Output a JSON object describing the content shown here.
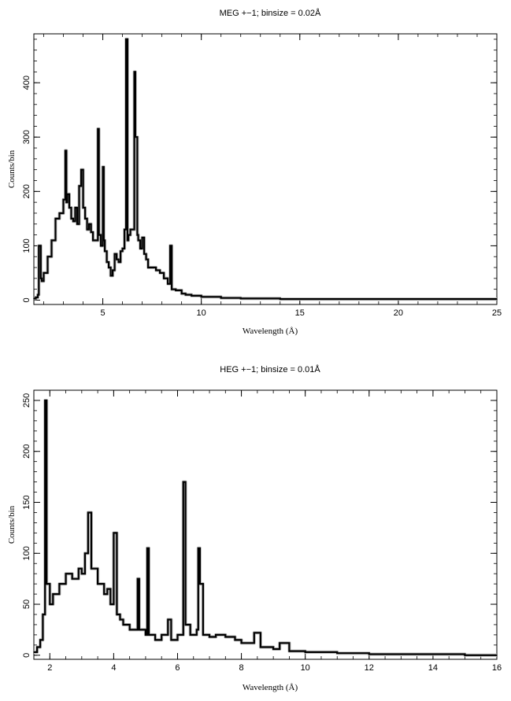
{
  "chart_data": [
    {
      "type": "line",
      "title": "MEG +−1; binsize = 0.02Å",
      "xlabel": "Wavelength (Å)",
      "ylabel": "Counts/bin",
      "xlim": [
        1.5,
        25
      ],
      "ylim": [
        -8,
        490
      ],
      "x_ticks": [
        5,
        10,
        15,
        20,
        25
      ],
      "y_ticks": [
        0,
        100,
        200,
        300,
        400
      ],
      "x_minor_step": 1,
      "y_minor_step": 20,
      "grid": false,
      "legend": "none",
      "series": [
        {
          "x": [
            1.5,
            1.6,
            1.7,
            1.75,
            1.85,
            1.9,
            2.0,
            2.2,
            2.4,
            2.6,
            2.7,
            2.8,
            3.0,
            3.1,
            3.15,
            3.2,
            3.3,
            3.4,
            3.5,
            3.6,
            3.7,
            3.8,
            3.9,
            4.0,
            4.1,
            4.2,
            4.3,
            4.4,
            4.5,
            4.6,
            4.75,
            4.8,
            4.9,
            5.0,
            5.05,
            5.1,
            5.2,
            5.3,
            5.4,
            5.5,
            5.6,
            5.7,
            5.8,
            5.9,
            6.0,
            6.1,
            6.18,
            6.25,
            6.3,
            6.4,
            6.5,
            6.6,
            6.65,
            6.7,
            6.75,
            6.8,
            6.9,
            7.0,
            7.1,
            7.2,
            7.3,
            7.5,
            7.7,
            7.9,
            8.1,
            8.3,
            8.42,
            8.5,
            8.7,
            9.0,
            9.2,
            9.5,
            10.0,
            11.0,
            12.0,
            13.0,
            14.0,
            15.0,
            16.0,
            18.0,
            20.0,
            22.0,
            25.0
          ],
          "y": [
            3,
            5,
            10,
            100,
            40,
            35,
            50,
            80,
            110,
            150,
            150,
            160,
            185,
            275,
            180,
            195,
            170,
            150,
            145,
            170,
            140,
            210,
            240,
            170,
            150,
            130,
            140,
            125,
            110,
            110,
            315,
            120,
            100,
            245,
            110,
            90,
            70,
            60,
            45,
            55,
            85,
            75,
            70,
            90,
            95,
            130,
            480,
            110,
            120,
            130,
            130,
            420,
            300,
            300,
            120,
            110,
            95,
            115,
            85,
            75,
            60,
            60,
            55,
            50,
            40,
            30,
            100,
            20,
            18,
            12,
            10,
            8,
            6,
            4,
            3,
            3,
            2,
            2,
            2,
            2,
            2,
            2,
            2
          ]
        }
      ]
    },
    {
      "type": "line",
      "title": "HEG +−1; binsize = 0.01Å",
      "xlabel": "Wavelength (Å)",
      "ylabel": "Counts/bin",
      "xlim": [
        1.5,
        16
      ],
      "ylim": [
        -4,
        260
      ],
      "x_ticks": [
        2,
        4,
        6,
        8,
        10,
        12,
        14,
        16
      ],
      "y_ticks": [
        0,
        50,
        100,
        150,
        200,
        250
      ],
      "x_minor_step": 0.5,
      "y_minor_step": 10,
      "grid": false,
      "legend": "none",
      "series": [
        {
          "x": [
            1.5,
            1.6,
            1.7,
            1.78,
            1.85,
            1.9,
            2.0,
            2.1,
            2.3,
            2.5,
            2.7,
            2.9,
            3.0,
            3.1,
            3.2,
            3.3,
            3.5,
            3.7,
            3.8,
            3.9,
            4.0,
            4.1,
            4.2,
            4.3,
            4.5,
            4.75,
            4.8,
            5.0,
            5.05,
            5.1,
            5.3,
            5.5,
            5.7,
            5.8,
            6.0,
            6.18,
            6.25,
            6.4,
            6.6,
            6.65,
            6.7,
            6.8,
            7.0,
            7.2,
            7.5,
            7.8,
            8.0,
            8.4,
            8.6,
            9.0,
            9.2,
            9.5,
            10.0,
            11.0,
            12.0,
            13.0,
            14.0,
            15.0,
            16.0
          ],
          "y": [
            3,
            8,
            15,
            40,
            250,
            70,
            50,
            60,
            70,
            80,
            75,
            85,
            80,
            100,
            140,
            85,
            70,
            60,
            65,
            50,
            120,
            40,
            35,
            30,
            25,
            75,
            25,
            20,
            105,
            20,
            15,
            20,
            35,
            15,
            20,
            170,
            30,
            20,
            25,
            105,
            70,
            20,
            18,
            20,
            18,
            15,
            12,
            22,
            8,
            6,
            12,
            4,
            3,
            2,
            1,
            1,
            1,
            0,
            0
          ]
        }
      ]
    }
  ]
}
